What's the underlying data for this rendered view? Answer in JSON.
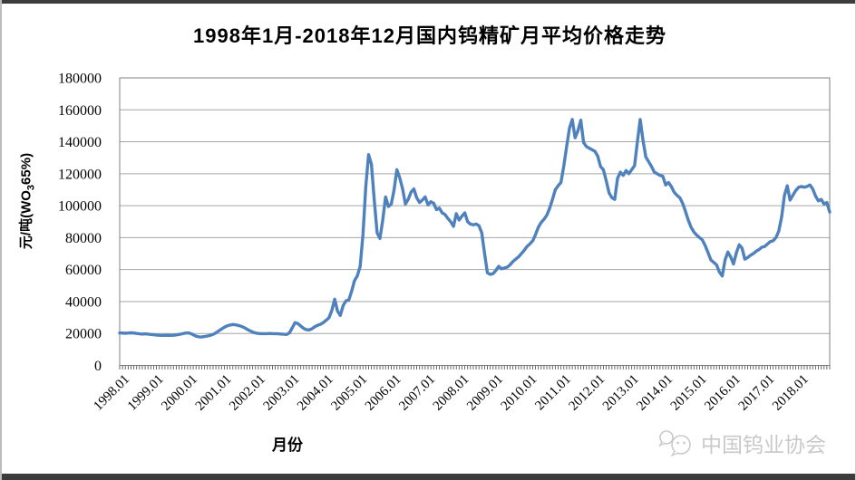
{
  "page": {
    "title": "1998年1月-2018年12月国内钨精矿月平均价格走势",
    "watermark": "中国钨业协会"
  },
  "chart_data": {
    "type": "line",
    "title": "1998年1月-2018年12月国内钨精矿月平均价格走势",
    "xlabel": "月份",
    "ylabel": "元/吨(WO3 65%)",
    "ylabel_parts": {
      "prefix": "元/吨(WO",
      "sub": "3",
      "suffix": "65%)"
    },
    "ylim": [
      0,
      180000
    ],
    "y_ticks": [
      0,
      20000,
      40000,
      60000,
      80000,
      100000,
      120000,
      140000,
      160000,
      180000
    ],
    "x_tick_labels": [
      "1998.01",
      "1999.01",
      "2000.01",
      "2001.01",
      "2002.01",
      "2003.01",
      "2004.01",
      "2005.01",
      "2006.01",
      "2007.01",
      "2008.01",
      "2009.01",
      "2010.01",
      "2011.01",
      "2012.01",
      "2013.01",
      "2014.01",
      "2015.01",
      "2016.01",
      "2017.01",
      "2018.01"
    ],
    "x_start": "1998.01",
    "x_end": "2018.12",
    "frequency": "monthly",
    "grid": "horizontal",
    "legend": "none",
    "line_color": "#4f81bd",
    "values": [
      20300,
      20300,
      20100,
      20300,
      20400,
      20300,
      20000,
      19800,
      19600,
      19800,
      19600,
      19400,
      19200,
      19000,
      18900,
      18800,
      18800,
      18900,
      18800,
      18900,
      19100,
      19400,
      19800,
      20200,
      20400,
      20000,
      19200,
      18300,
      17900,
      17800,
      18100,
      18400,
      18800,
      19400,
      20400,
      21600,
      22800,
      23900,
      24800,
      25300,
      25600,
      25400,
      25000,
      24500,
      23700,
      22700,
      21700,
      20900,
      20300,
      20000,
      19900,
      19900,
      19900,
      20000,
      19900,
      19900,
      19800,
      19700,
      19500,
      19400,
      20400,
      23500,
      26800,
      26200,
      24700,
      23200,
      22400,
      22200,
      23000,
      24200,
      25200,
      25800,
      26800,
      28300,
      29800,
      34500,
      41500,
      34000,
      31300,
      37500,
      40500,
      41000,
      46500,
      53000,
      56000,
      62000,
      82000,
      112000,
      132000,
      126000,
      103000,
      83000,
      79500,
      91000,
      105500,
      99500,
      101000,
      110000,
      122500,
      117500,
      110500,
      101000,
      104000,
      108500,
      110500,
      105000,
      102000,
      103500,
      105500,
      100500,
      102500,
      101500,
      97500,
      98500,
      95500,
      94500,
      92000,
      90000,
      87000,
      95000,
      91000,
      93500,
      95500,
      90000,
      88500,
      88000,
      88500,
      87500,
      83000,
      70000,
      58000,
      57000,
      57500,
      59500,
      62000,
      60500,
      61000,
      61500,
      63000,
      65000,
      66500,
      68000,
      70000,
      72000,
      74500,
      76000,
      78000,
      82000,
      86500,
      89500,
      91500,
      94000,
      98500,
      104000,
      110000,
      112500,
      114500,
      125000,
      137000,
      148500,
      154000,
      142500,
      147000,
      153500,
      139500,
      137000,
      136000,
      135000,
      134000,
      131000,
      124500,
      122500,
      115500,
      108000,
      105000,
      104000,
      117000,
      121000,
      119000,
      122000,
      120000,
      122500,
      125000,
      140000,
      154000,
      141000,
      130500,
      127500,
      124500,
      121000,
      120000,
      119000,
      118500,
      113000,
      114500,
      112000,
      108500,
      106500,
      105000,
      101500,
      96500,
      91000,
      86500,
      83500,
      81500,
      80000,
      78500,
      75000,
      70500,
      66000,
      64500,
      63000,
      58500,
      56000,
      66000,
      71000,
      68000,
      63500,
      70500,
      75500,
      73500,
      66500,
      67500,
      69000,
      70000,
      71500,
      72500,
      74000,
      74500,
      76000,
      77500,
      78000,
      80000,
      84000,
      93000,
      106500,
      112500,
      103500,
      106500,
      109500,
      111500,
      112000,
      111500,
      112000,
      113000,
      110500,
      106000,
      103000,
      104000,
      101000,
      102000,
      96000
    ],
    "colors": {
      "line": "#4f81bd",
      "gridline": "#a6a6a6",
      "axis": "#595959",
      "watermark": "#c9c9c9"
    }
  }
}
